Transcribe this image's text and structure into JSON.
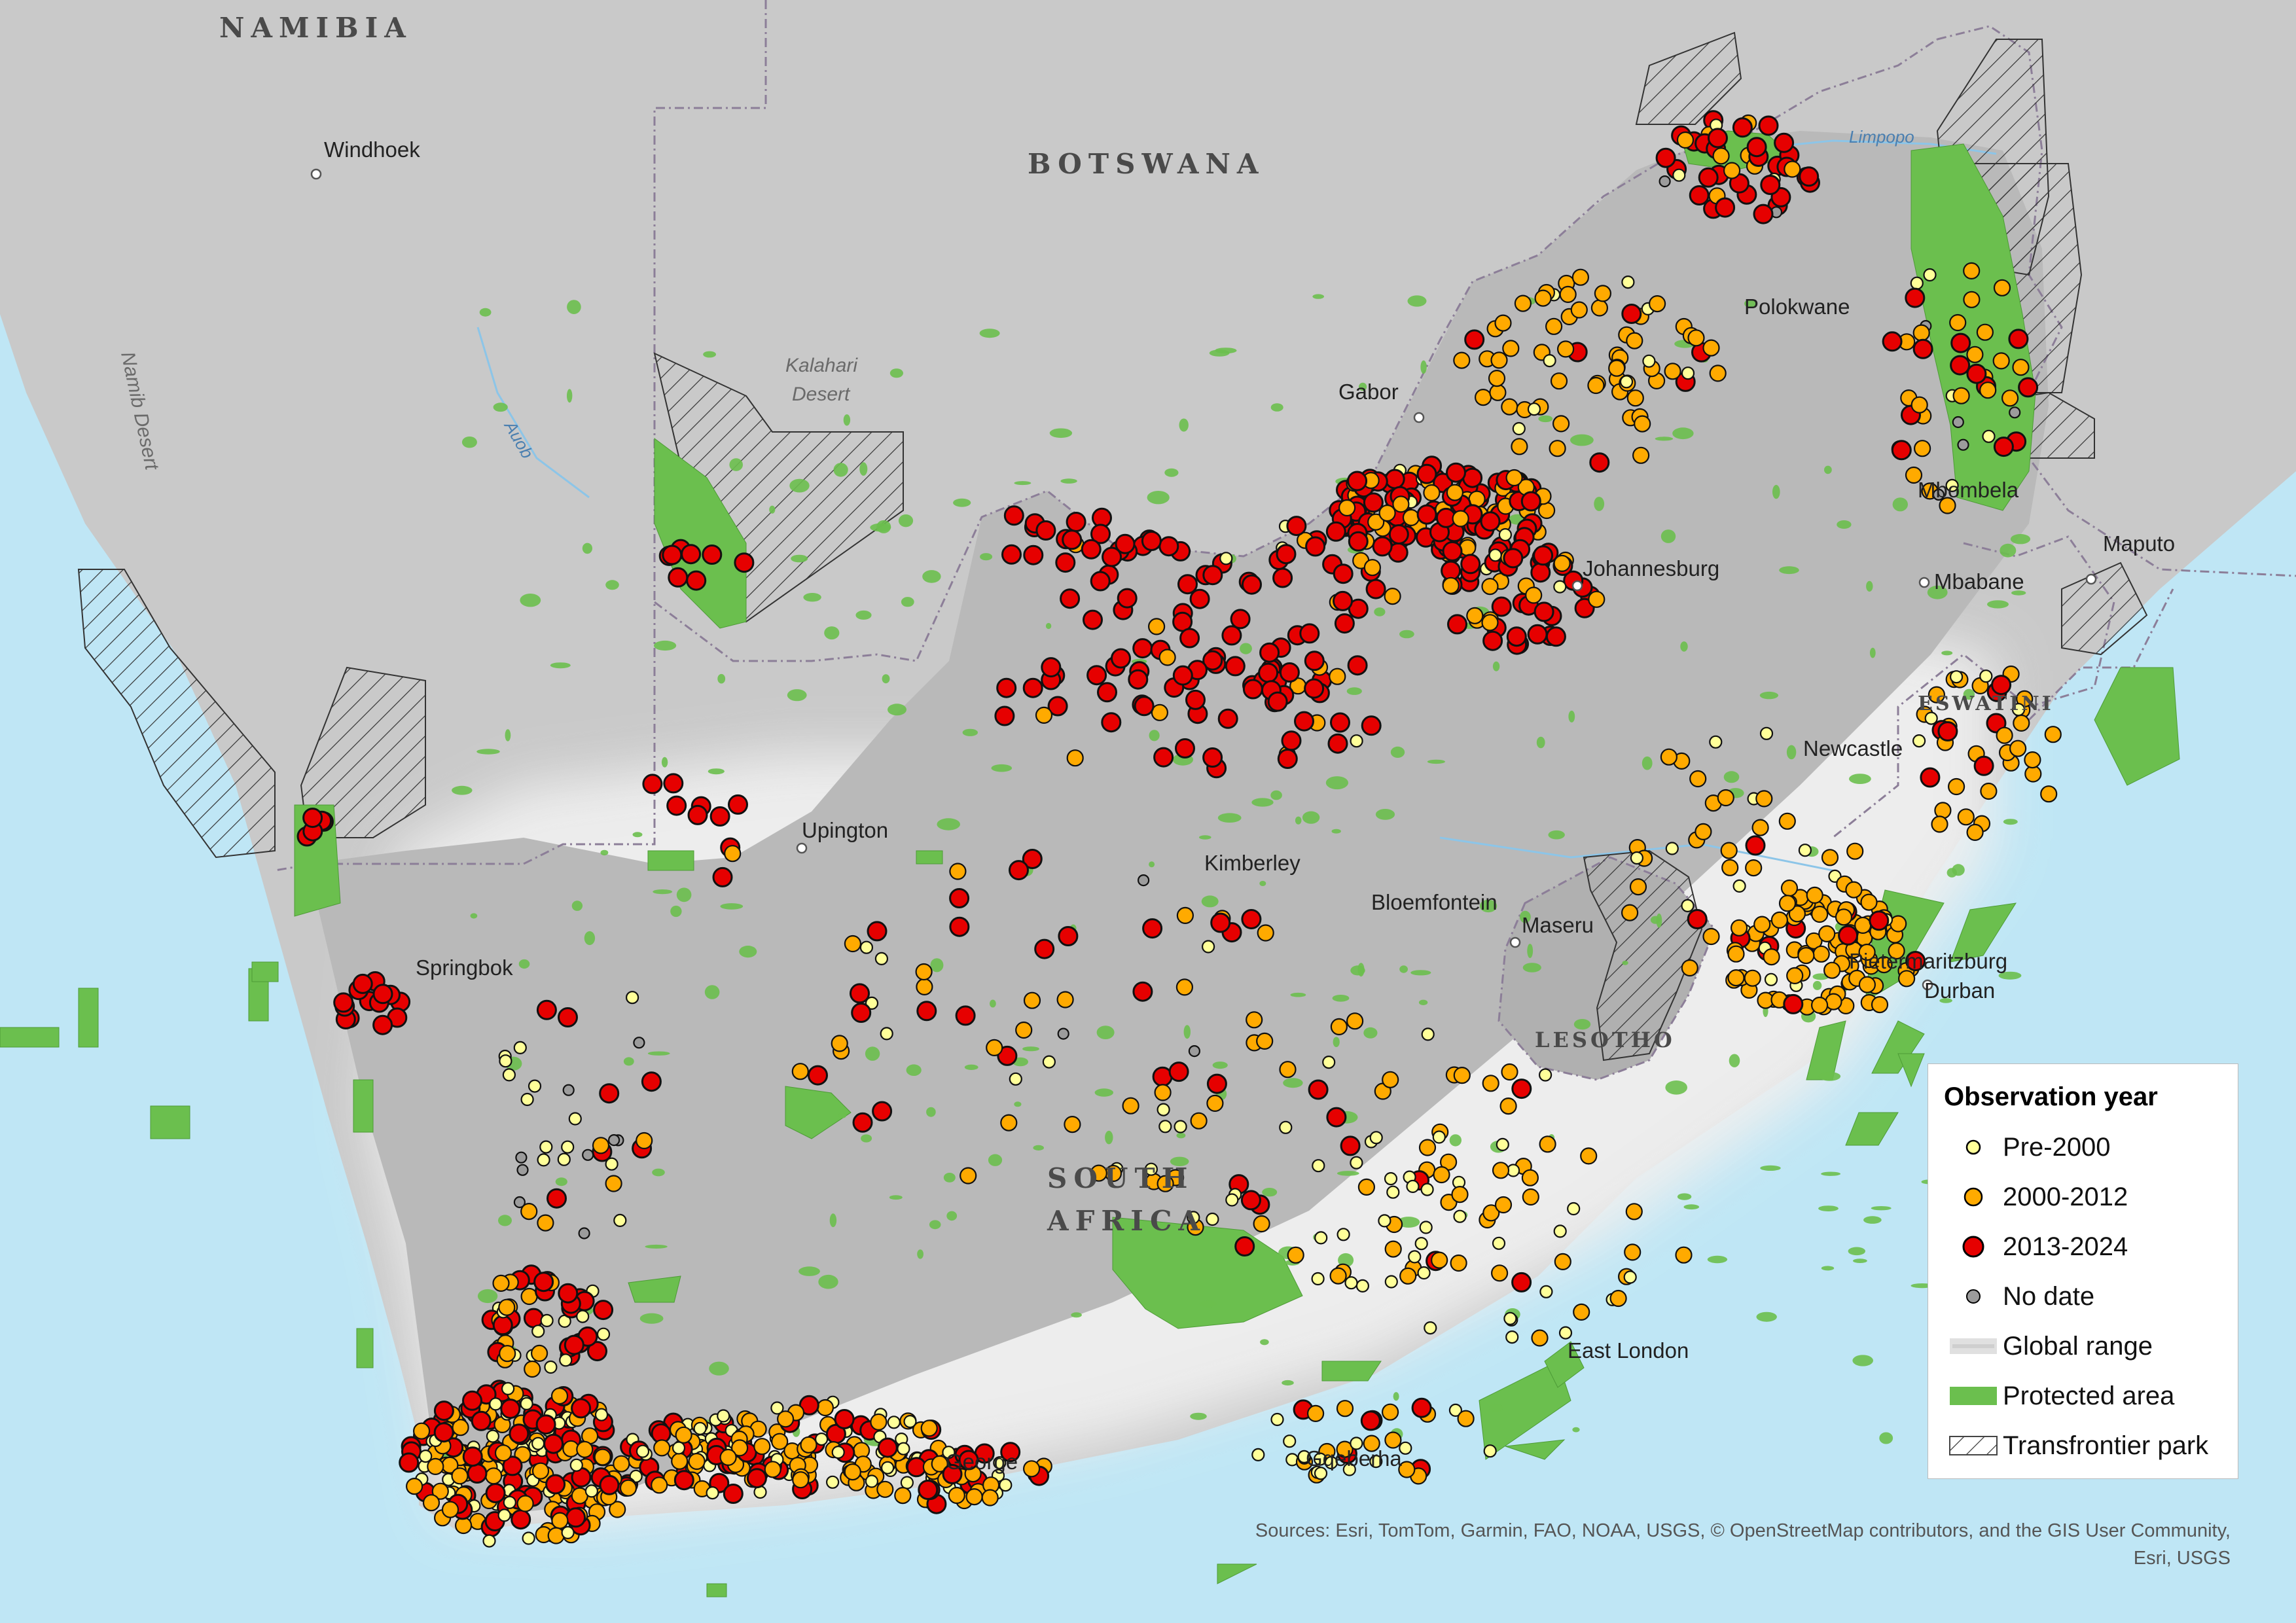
{
  "countries": {
    "namibia": "NAMIBIA",
    "botswana": "BOTSWANA",
    "south_africa_1": "SOUTH",
    "south_africa_2": "AFRICA",
    "lesotho": "LESOTHO",
    "eswatini": "ESWATINI"
  },
  "cities": {
    "windhoek": "Windhoek",
    "polokwane": "Polokwane",
    "gaborone": "Gabor",
    "mbombela": "Mbombela",
    "maputo": "Maputo",
    "johannesburg": "Johannesburg",
    "mbabane": "Mbabane",
    "upington": "Upington",
    "kimberley": "Kimberley",
    "bloemfontein": "Bloemfontein",
    "maseru": "Maseru",
    "newcastle": "Newcastle",
    "pietermaritzburg": "Pietermaritzburg",
    "durban": "Durban",
    "springbok": "Springbok",
    "east_london": "East London",
    "gqeberha": "Gqeberha",
    "george": "George"
  },
  "physical": {
    "namib_desert": "Namib Desert",
    "kalahari_1": "Kalahari",
    "kalahari_2": "Desert",
    "auob": "Auob",
    "limpopo": "Limpopo"
  },
  "legend": {
    "title": "Observation year",
    "items": [
      {
        "label": "Pre-2000",
        "color": "#ffff99"
      },
      {
        "label": "2000-2012",
        "color": "#ffaa00"
      },
      {
        "label": "2013-2024",
        "color": "#e60000"
      },
      {
        "label": "No date",
        "color": "#9c9c9c"
      },
      {
        "label": "Global range",
        "color": "#e0e0e0"
      },
      {
        "label": "Protected area",
        "color": "#6bbf4e"
      },
      {
        "label": "Transfrontier park",
        "color": "#ffffff"
      }
    ]
  },
  "sources": {
    "line1": "Sources: Esri, TomTom, Garmin, FAO, NOAA, USGS, © OpenStreetMap contributors, and the GIS User Community,",
    "line2": "Esri, USGS"
  }
}
